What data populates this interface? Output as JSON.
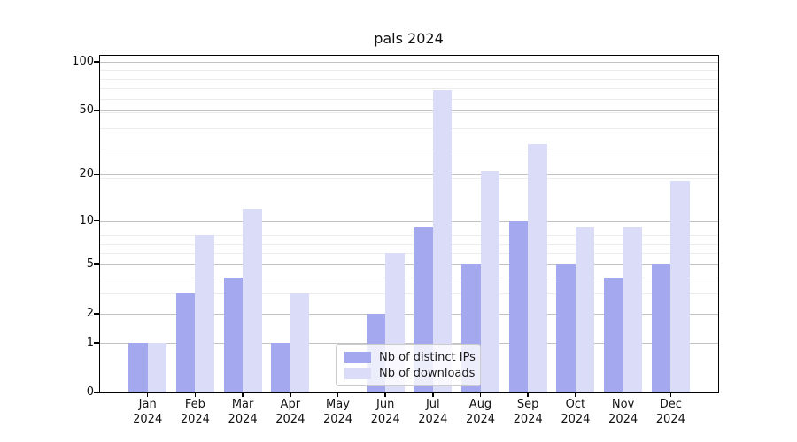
{
  "title": "pals 2024",
  "chart_data": {
    "type": "bar",
    "title": "pals 2024",
    "categories": [
      "Jan\n2024",
      "Feb\n2024",
      "Mar\n2024",
      "Apr\n2024",
      "May\n2024",
      "Jun\n2024",
      "Jul\n2024",
      "Aug\n2024",
      "Sep\n2024",
      "Oct\n2024",
      "Nov\n2024",
      "Dec\n2024"
    ],
    "series": [
      {
        "name": "Nb of distinct IPs",
        "color": "#a3a8ef",
        "values": [
          1,
          3,
          4,
          1,
          0,
          2,
          9,
          5,
          10,
          5,
          4,
          5
        ]
      },
      {
        "name": "Nb of downloads",
        "color": "#dadcf8",
        "values": [
          1,
          8,
          12,
          3,
          0,
          6,
          67,
          21,
          31,
          9,
          9,
          18
        ]
      }
    ],
    "xlabel": "",
    "ylabel": "",
    "y_scale": "log1p",
    "ylim": [
      0,
      110
    ],
    "y_ticks": [
      0,
      1,
      2,
      5,
      10,
      20,
      50,
      100
    ],
    "y_minor_gridlines": [
      3,
      4,
      6,
      7,
      8,
      19,
      29,
      39,
      49,
      59,
      69,
      79,
      89
    ],
    "grid": "horizontal, major and minor, behind bars",
    "legend_position": "lower center, semi-transparent white box"
  }
}
